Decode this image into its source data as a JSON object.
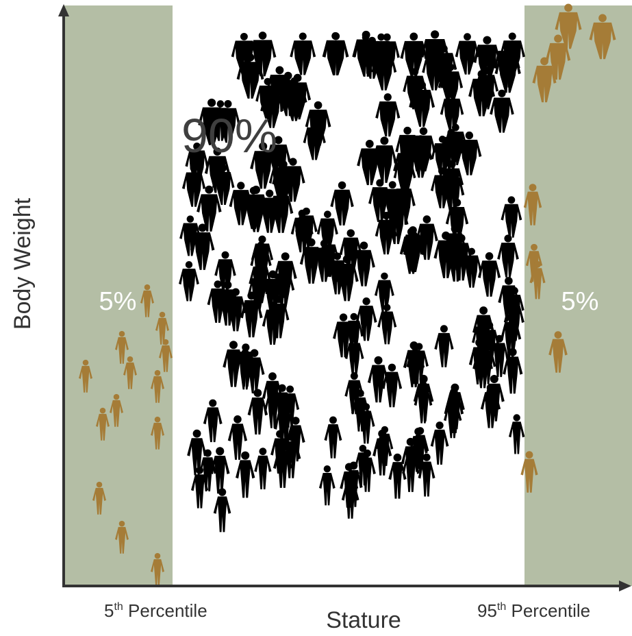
{
  "y_axis_label": "Body Weight",
  "x_axis_label": "Stature",
  "center_label": "90%",
  "left_band_label": "5%",
  "right_band_label": "5%",
  "left_percentile": {
    "number": "5",
    "suffix": "th",
    "text": " Percentile"
  },
  "right_percentile": {
    "number": "95",
    "suffix": "th",
    "text": " Percentile"
  }
}
